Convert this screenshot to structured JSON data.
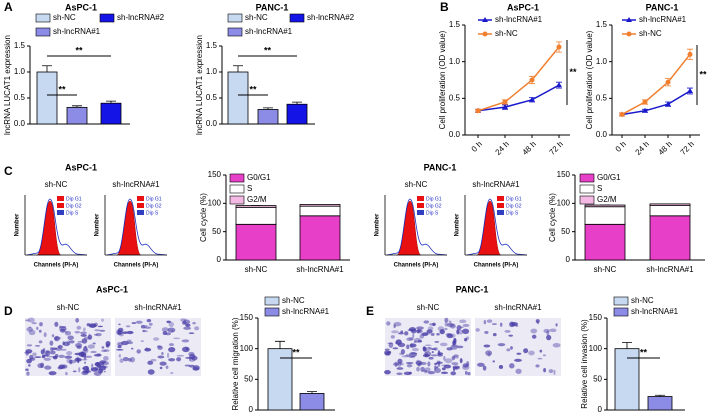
{
  "panel_labels": [
    "A",
    "B",
    "C",
    "D",
    "E"
  ],
  "flow": {
    "titles": [
      "AsPC-1",
      "PANC-1"
    ],
    "panels": [
      "sh-NC",
      "sh-lncRNA#1",
      "sh-NC",
      "sh-lncRNA#1"
    ],
    "ylabel": "Number",
    "xlabel": "Channels (PI-A)",
    "legend": [
      "Dip G1",
      "Dip G2",
      "Dip S"
    ]
  },
  "images": {
    "titles": [
      "AsPC-1",
      "PANC-1"
    ],
    "panels": [
      "sh-NC",
      "sh-lncRNA#1",
      "sh-NC",
      "sh-lncRNA#1"
    ]
  },
  "chart_data": [
    {
      "type": "bar",
      "title": "AsPC-1",
      "ylabel": "lncRNA LUCAT1 expression",
      "categories": [
        null
      ],
      "series": [
        {
          "name": "sh-NC",
          "color": "#c6d9f0",
          "values": [
            1.0
          ],
          "errors": [
            0.12
          ]
        },
        {
          "name": "sh-lncRNA#1",
          "color": "#8c8ce6",
          "values": [
            0.32
          ],
          "errors": [
            0.03
          ]
        },
        {
          "name": "sh-lncRNA#2",
          "color": "#1414e6",
          "values": [
            0.4
          ],
          "errors": [
            0.04
          ]
        }
      ],
      "ylim": [
        0,
        1.5
      ],
      "yticks": [
        {
          "value": 0,
          "label": "0.0"
        },
        {
          "value": 0.5,
          "label": "0.5"
        },
        {
          "value": 1,
          "label": "1.0"
        },
        {
          "value": 1.5,
          "label": "1.5"
        }
      ],
      "annotations": [
        "**",
        "**"
      ]
    },
    {
      "type": "bar",
      "title": "PANC-1",
      "ylabel": "lncRNA LUCAT1 expression",
      "categories": [
        null
      ],
      "series": [
        {
          "name": "sh-NC",
          "color": "#c6d9f0",
          "values": [
            1.0
          ],
          "errors": [
            0.12
          ]
        },
        {
          "name": "sh-lncRNA#1",
          "color": "#8c8ce6",
          "values": [
            0.28
          ],
          "errors": [
            0.03
          ]
        },
        {
          "name": "sh-lncRNA#2",
          "color": "#1414e6",
          "values": [
            0.38
          ],
          "errors": [
            0.04
          ]
        }
      ],
      "ylim": [
        0,
        1.5
      ],
      "yticks": [
        {
          "value": 0,
          "label": "0.0"
        },
        {
          "value": 0.5,
          "label": "0.5"
        },
        {
          "value": 1,
          "label": "1.0"
        },
        {
          "value": 1.5,
          "label": "1.5"
        }
      ],
      "annotations": [
        "**",
        "**"
      ]
    },
    {
      "type": "line",
      "title": "AsPC-1",
      "ylabel": "Cell proliferation (OD value)",
      "categories": [
        "0 h",
        "24 h",
        "48 h",
        "72 h"
      ],
      "series": [
        {
          "name": "sh-lncRNA#1",
          "color": "#1a1acc",
          "values": [
            0.33,
            0.38,
            0.48,
            0.68
          ],
          "errors": [
            0.02,
            0.03,
            0.03,
            0.04
          ]
        },
        {
          "name": "sh-NC",
          "color": "#f08030",
          "values": [
            0.33,
            0.45,
            0.75,
            1.2
          ],
          "errors": [
            0.02,
            0.03,
            0.05,
            0.07
          ]
        }
      ],
      "ylim": [
        0,
        1.5
      ],
      "yticks": [
        {
          "value": 0,
          "label": "0.0"
        },
        {
          "value": 0.5,
          "label": "0.5"
        },
        {
          "value": 1,
          "label": "1.0"
        },
        {
          "value": 1.5,
          "label": "1.5"
        }
      ],
      "annotations": [
        "**"
      ]
    },
    {
      "type": "line",
      "title": "PANC-1",
      "ylabel": "Cell proliferation (OD value)",
      "categories": [
        "0 h",
        "24 h",
        "48 h",
        "72 h"
      ],
      "series": [
        {
          "name": "sh-lncRNA#1",
          "color": "#1a1acc",
          "values": [
            0.28,
            0.33,
            0.42,
            0.6
          ],
          "errors": [
            0.02,
            0.02,
            0.03,
            0.04
          ]
        },
        {
          "name": "sh-NC",
          "color": "#f08030",
          "values": [
            0.28,
            0.45,
            0.72,
            1.1
          ],
          "errors": [
            0.02,
            0.03,
            0.05,
            0.07
          ]
        }
      ],
      "ylim": [
        0,
        1.5
      ],
      "yticks": [
        {
          "value": 0,
          "label": "0.0"
        },
        {
          "value": 0.5,
          "label": "0.5"
        },
        {
          "value": 1,
          "label": "1.0"
        },
        {
          "value": 1.5,
          "label": "1.5"
        }
      ],
      "annotations": [
        "**"
      ]
    },
    {
      "type": "stacked_bar",
      "ylabel": "Cell cycle (%)",
      "categories": [
        "sh-NC",
        "sh-lncRNA#1"
      ],
      "series": [
        {
          "name": "G0/G1",
          "color": "#e83fc8",
          "values": [
            63,
            78
          ],
          "errors": [
            6,
            6
          ]
        },
        {
          "name": "S",
          "color": "#ffffff",
          "values": [
            30,
            17
          ],
          "errors": [
            3,
            2
          ]
        },
        {
          "name": "G2/M",
          "color": "#f4b8e4",
          "values": [
            3,
            3
          ]
        }
      ],
      "ylim": [
        0,
        150
      ],
      "yticks": [
        0,
        50,
        100,
        150
      ]
    },
    {
      "type": "stacked_bar",
      "ylabel": "Cell cycle (%)",
      "categories": [
        "sh-NC",
        "sh-lncRNA#1"
      ],
      "series": [
        {
          "name": "G0/G1",
          "color": "#e83fc8",
          "values": [
            63,
            78
          ],
          "errors": [
            6,
            6
          ]
        },
        {
          "name": "S",
          "color": "#ffffff",
          "values": [
            31,
            18
          ],
          "errors": [
            3,
            2
          ]
        },
        {
          "name": "G2/M",
          "color": "#f4b8e4",
          "values": [
            3,
            3
          ]
        }
      ],
      "ylim": [
        0,
        150
      ],
      "yticks": [
        0,
        50,
        100,
        150
      ]
    },
    {
      "type": "bar",
      "ylabel": "Relative cell migration (%)",
      "categories": [
        null
      ],
      "series": [
        {
          "name": "sh-NC",
          "color": "#c6d9f0",
          "values": [
            100
          ],
          "errors": [
            12
          ]
        },
        {
          "name": "sh-lncRNA#1",
          "color": "#8c8ce6",
          "values": [
            27
          ],
          "errors": [
            3
          ]
        }
      ],
      "ylim": [
        0,
        150
      ],
      "yticks": [
        0,
        50,
        100,
        150
      ],
      "annotations": [
        "**"
      ]
    },
    {
      "type": "bar",
      "ylabel": "Relative cell invasion (%)",
      "categories": [
        null
      ],
      "series": [
        {
          "name": "sh-NC",
          "color": "#c6d9f0",
          "values": [
            100
          ],
          "errors": [
            10
          ]
        },
        {
          "name": "sh-lncRNA#1",
          "color": "#8c8ce6",
          "values": [
            22
          ],
          "errors": [
            2
          ]
        }
      ],
      "ylim": [
        0,
        150
      ],
      "yticks": [
        0,
        50,
        100,
        150
      ],
      "annotations": [
        "**"
      ]
    }
  ]
}
